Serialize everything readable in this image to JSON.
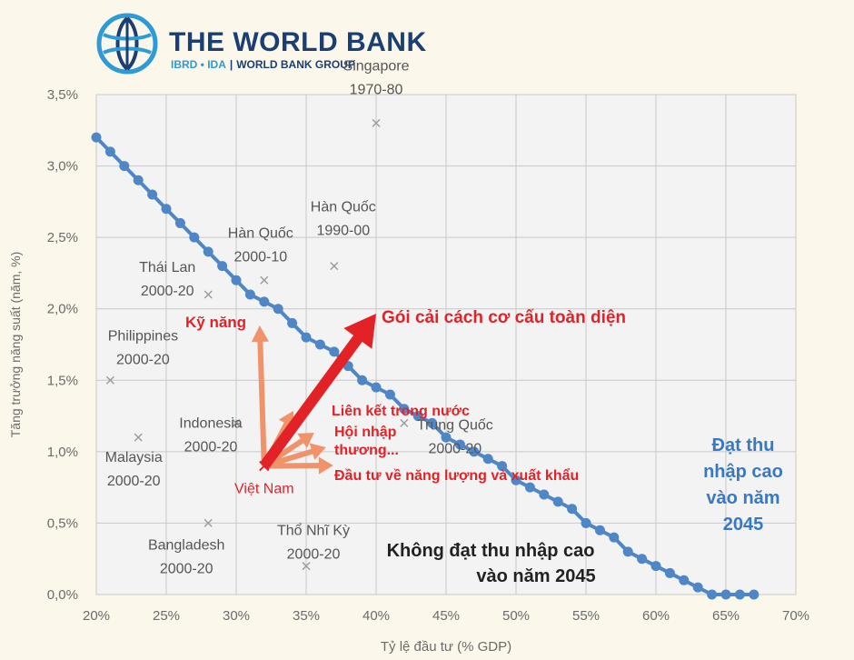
{
  "brand": {
    "title": "THE WORLD BANK",
    "sub_ibrd": "IBRD • IDA",
    "sub_separator": "|",
    "sub_group": "WORLD BANK GROUP"
  },
  "chart_data": {
    "type": "scatter",
    "xlabel": "Tỷ lệ đầu tư (% GDP)",
    "ylabel": "Tăng trưởng năng suất (năm, %)",
    "xlim": [
      20,
      70
    ],
    "ylim": [
      0,
      3.5
    ],
    "x_ticks": [
      20,
      25,
      30,
      35,
      40,
      45,
      50,
      55,
      60,
      65,
      70
    ],
    "x_tick_labels": [
      "20%",
      "25%",
      "30%",
      "35%",
      "40%",
      "45%",
      "50%",
      "55%",
      "60%",
      "65%",
      "70%"
    ],
    "y_ticks": [
      0,
      0.5,
      1.0,
      1.5,
      2.0,
      2.5,
      3.0,
      3.5
    ],
    "y_tick_labels": [
      "0,0%",
      "0,5%",
      "1,0%",
      "1,5%",
      "2,0%",
      "2,5%",
      "3,0%",
      "3,5%"
    ],
    "grid": true,
    "frontier_line": {
      "x": [
        20,
        21,
        22,
        23,
        24,
        25,
        26,
        27,
        28,
        29,
        30,
        31,
        32,
        33,
        34,
        35,
        36,
        37,
        38,
        39,
        40,
        41,
        42,
        43,
        44,
        45,
        46,
        47,
        48,
        49,
        50,
        51,
        52,
        53,
        54,
        55,
        56,
        57,
        58,
        59,
        60,
        61,
        62,
        63,
        64,
        65,
        66,
        67
      ],
      "y": [
        3.2,
        3.1,
        3.0,
        2.9,
        2.8,
        2.7,
        2.6,
        2.5,
        2.4,
        2.3,
        2.2,
        2.1,
        2.05,
        2.0,
        1.9,
        1.8,
        1.75,
        1.7,
        1.6,
        1.5,
        1.45,
        1.4,
        1.3,
        1.25,
        1.2,
        1.1,
        1.05,
        1.0,
        0.95,
        0.9,
        0.8,
        0.75,
        0.7,
        0.65,
        0.6,
        0.5,
        0.45,
        0.4,
        0.3,
        0.25,
        0.2,
        0.15,
        0.1,
        0.05,
        0.0,
        -0.05,
        -0.1,
        -0.15
      ]
    },
    "points": [
      {
        "label": "Singapore",
        "period": "1970-80",
        "x": 40,
        "y": 3.3
      },
      {
        "label": "Hàn Quốc",
        "period": "1990-00",
        "x": 37,
        "y": 2.3
      },
      {
        "label": "Hàn Quốc",
        "period": "2000-10",
        "x": 32,
        "y": 2.2
      },
      {
        "label": "Thái Lan",
        "period": "2000-20",
        "x": 28,
        "y": 2.1
      },
      {
        "label": "Philippines",
        "period": "2000-20",
        "x": 21,
        "y": 1.5
      },
      {
        "label": "Malaysia",
        "period": "2000-20",
        "x": 23,
        "y": 1.1
      },
      {
        "label": "Indonesia",
        "period": "2000-20",
        "x": 30,
        "y": 1.2
      },
      {
        "label": "Trung Quốc",
        "period": "2000-20",
        "x": 42,
        "y": 1.2
      },
      {
        "label": "Bangladesh",
        "period": "2000-20",
        "x": 28,
        "y": 0.5
      },
      {
        "label": "Thổ Nhĩ Kỳ",
        "period": "2000-20",
        "x": 35,
        "y": 0.2
      }
    ],
    "vietnam": {
      "label": "Việt Nam",
      "x": 32,
      "y": 0.9
    },
    "annotations": {
      "main_arrow": "Gói cải cách cơ cấu toàn diện",
      "skills": "Kỹ năng",
      "domestic": "Liên kết trong nước",
      "trade": "Hội nhập thương...",
      "trade_line1": "Hội nhập",
      "trade_line2": "thương...",
      "energy": "Đầu tư về năng lượng và xuất khẩu",
      "above_line": "Đạt thu nhập cao vào năm 2045",
      "above_line1": "Đạt thu",
      "above_line2": "nhập cao",
      "above_line3": "vào năm",
      "above_line4": "2045",
      "below_line": "Không đạt thu nhập cao vào năm 2045",
      "below_line1": "Không đạt thu nhập cao",
      "below_line2": "vào năm 2045"
    },
    "colors": {
      "frontier": "#4f86c6",
      "arrow_main": "#e32228",
      "arrow_light": "#f0926a",
      "annotation_red": "#e32228",
      "annotation_blue": "#3a78c2",
      "marker": "#9a9a9a"
    }
  }
}
